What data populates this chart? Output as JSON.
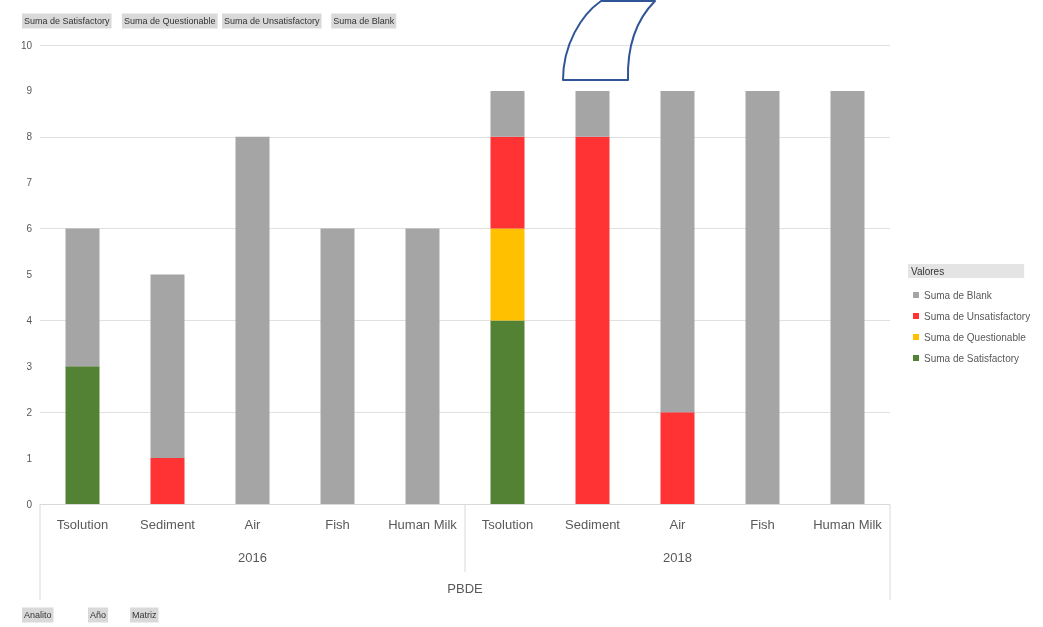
{
  "chart_data": {
    "type": "bar",
    "stacked": true,
    "categories": [
      "Tsolution",
      "Sediment",
      "Air",
      "Fish",
      "Human Milk",
      "Tsolution",
      "Sediment",
      "Air",
      "Fish",
      "Human Milk"
    ],
    "series": [
      {
        "name": "Suma de Satisfactory",
        "color": "#548235",
        "values": [
          3,
          0,
          0,
          0,
          0,
          4,
          0,
          0,
          0,
          0
        ]
      },
      {
        "name": "Suma de Questionable",
        "color": "#ffc000",
        "values": [
          0,
          0,
          0,
          0,
          0,
          2,
          0,
          0,
          0,
          0
        ]
      },
      {
        "name": "Suma de Unsatisfactory",
        "color": "#ff3333",
        "values": [
          0,
          1,
          0,
          0,
          0,
          2,
          8,
          2,
          0,
          0
        ]
      },
      {
        "name": "Suma de Blank",
        "color": "#a5a5a5",
        "values": [
          3,
          4,
          8,
          6,
          6,
          1,
          1,
          7,
          9,
          9
        ]
      }
    ],
    "ylim": [
      0,
      10
    ],
    "yticks": [
      0,
      1,
      2,
      3,
      4,
      5,
      6,
      7,
      8,
      9,
      10
    ],
    "grid": "y",
    "legend": "right",
    "legend_title": "Valores",
    "annotations": [
      "2016",
      "2018",
      "PBDE",
      "Suma de Satisfactory",
      "Suma de Questionable",
      "Suma de Unsatisfactory",
      "Suma de Blank",
      "Analito",
      "Año",
      "Matriz"
    ]
  }
}
